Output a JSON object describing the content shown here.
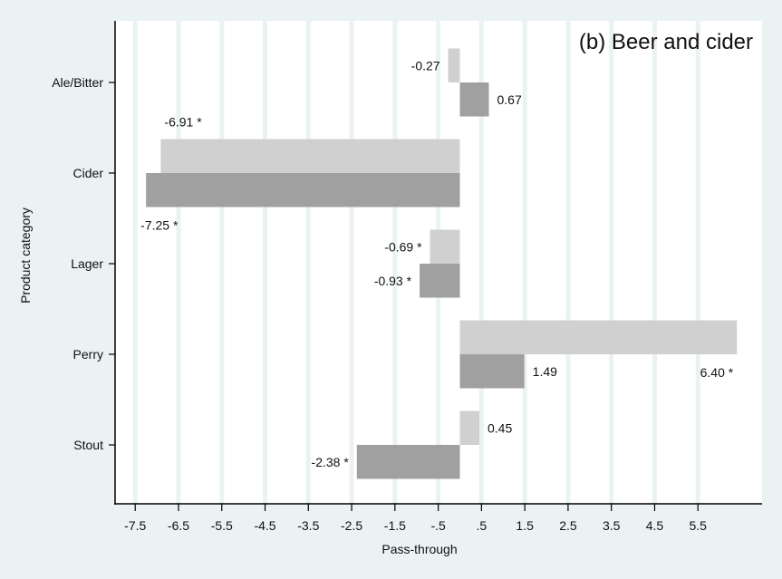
{
  "chart_data": {
    "type": "bar",
    "orientation": "horizontal",
    "title": "(b) Beer and cider",
    "xlabel": "Pass-through",
    "ylabel": "Product category",
    "categories": [
      "Ale/Bitter",
      "Cider",
      "Lager",
      "Perry",
      "Stout"
    ],
    "series": [
      {
        "values": [
          -0.27,
          -6.91,
          -0.69,
          6.4,
          0.45
        ],
        "labels": [
          "-0.27",
          "-6.91 *",
          "-0.69 *",
          "6.40 *",
          "0.45"
        ],
        "color": "#d0d0d0"
      },
      {
        "values": [
          0.67,
          -7.25,
          -0.93,
          1.49,
          -2.38
        ],
        "labels": [
          "0.67",
          "-7.25 *",
          "-0.93 *",
          "1.49",
          "-2.38 *"
        ],
        "color": "#a0a0a0"
      }
    ],
    "xticks": [
      -7.5,
      -6.5,
      -5.5,
      -4.5,
      -3.5,
      -2.5,
      -1.5,
      -0.5,
      0.5,
      1.5,
      2.5,
      3.5,
      4.5,
      5.5
    ],
    "xtick_labels": [
      "-7.5",
      "-6.5",
      "-5.5",
      "-4.5",
      "-3.5",
      "-2.5",
      "-1.5",
      "-.5",
      ".5",
      "1.5",
      "2.5",
      "3.5",
      "4.5",
      "5.5"
    ],
    "xlim": [
      -8.0,
      6.95
    ],
    "grid": true,
    "background": "#eaf2f3",
    "plot_background": "#ffffff"
  }
}
